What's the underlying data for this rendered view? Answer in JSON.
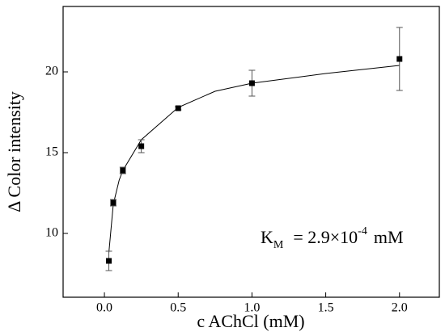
{
  "chart_data": {
    "type": "scatter",
    "x_label": "c AChCl (mM)",
    "y_label": "Δ Color intensity",
    "xlim": [
      -0.28,
      2.27
    ],
    "ylim": [
      6.05,
      24.05
    ],
    "xticks": [
      {
        "value": 0,
        "label": "0.0"
      },
      0.5,
      {
        "value": 1,
        "label": "1.0"
      },
      1.5,
      {
        "value": 2,
        "label": "2.0"
      }
    ],
    "yticks": [
      10,
      15,
      20
    ],
    "color": "#000000",
    "x": [
      0.03,
      0.06,
      0.125,
      0.25,
      0.5,
      1.0,
      2.0
    ],
    "values": [
      8.3,
      11.9,
      13.9,
      15.4,
      17.75,
      19.3,
      20.8
    ],
    "errors": [
      0.6,
      0.2,
      0.2,
      0.4,
      0.1,
      0.8,
      1.95
    ],
    "fit": {
      "x": [
        0.03,
        0.06,
        0.1,
        0.125,
        0.25,
        0.5,
        0.75,
        1.0,
        1.5,
        2.0
      ],
      "values": [
        8.8,
        11.8,
        13.3,
        13.9,
        15.8,
        17.8,
        18.8,
        19.3,
        19.9,
        20.4
      ]
    },
    "annotation": {
      "k": "K",
      "k_sub": "M",
      "eq": "= 2.9×10",
      "exp": "-4",
      "unit": "mM"
    }
  }
}
